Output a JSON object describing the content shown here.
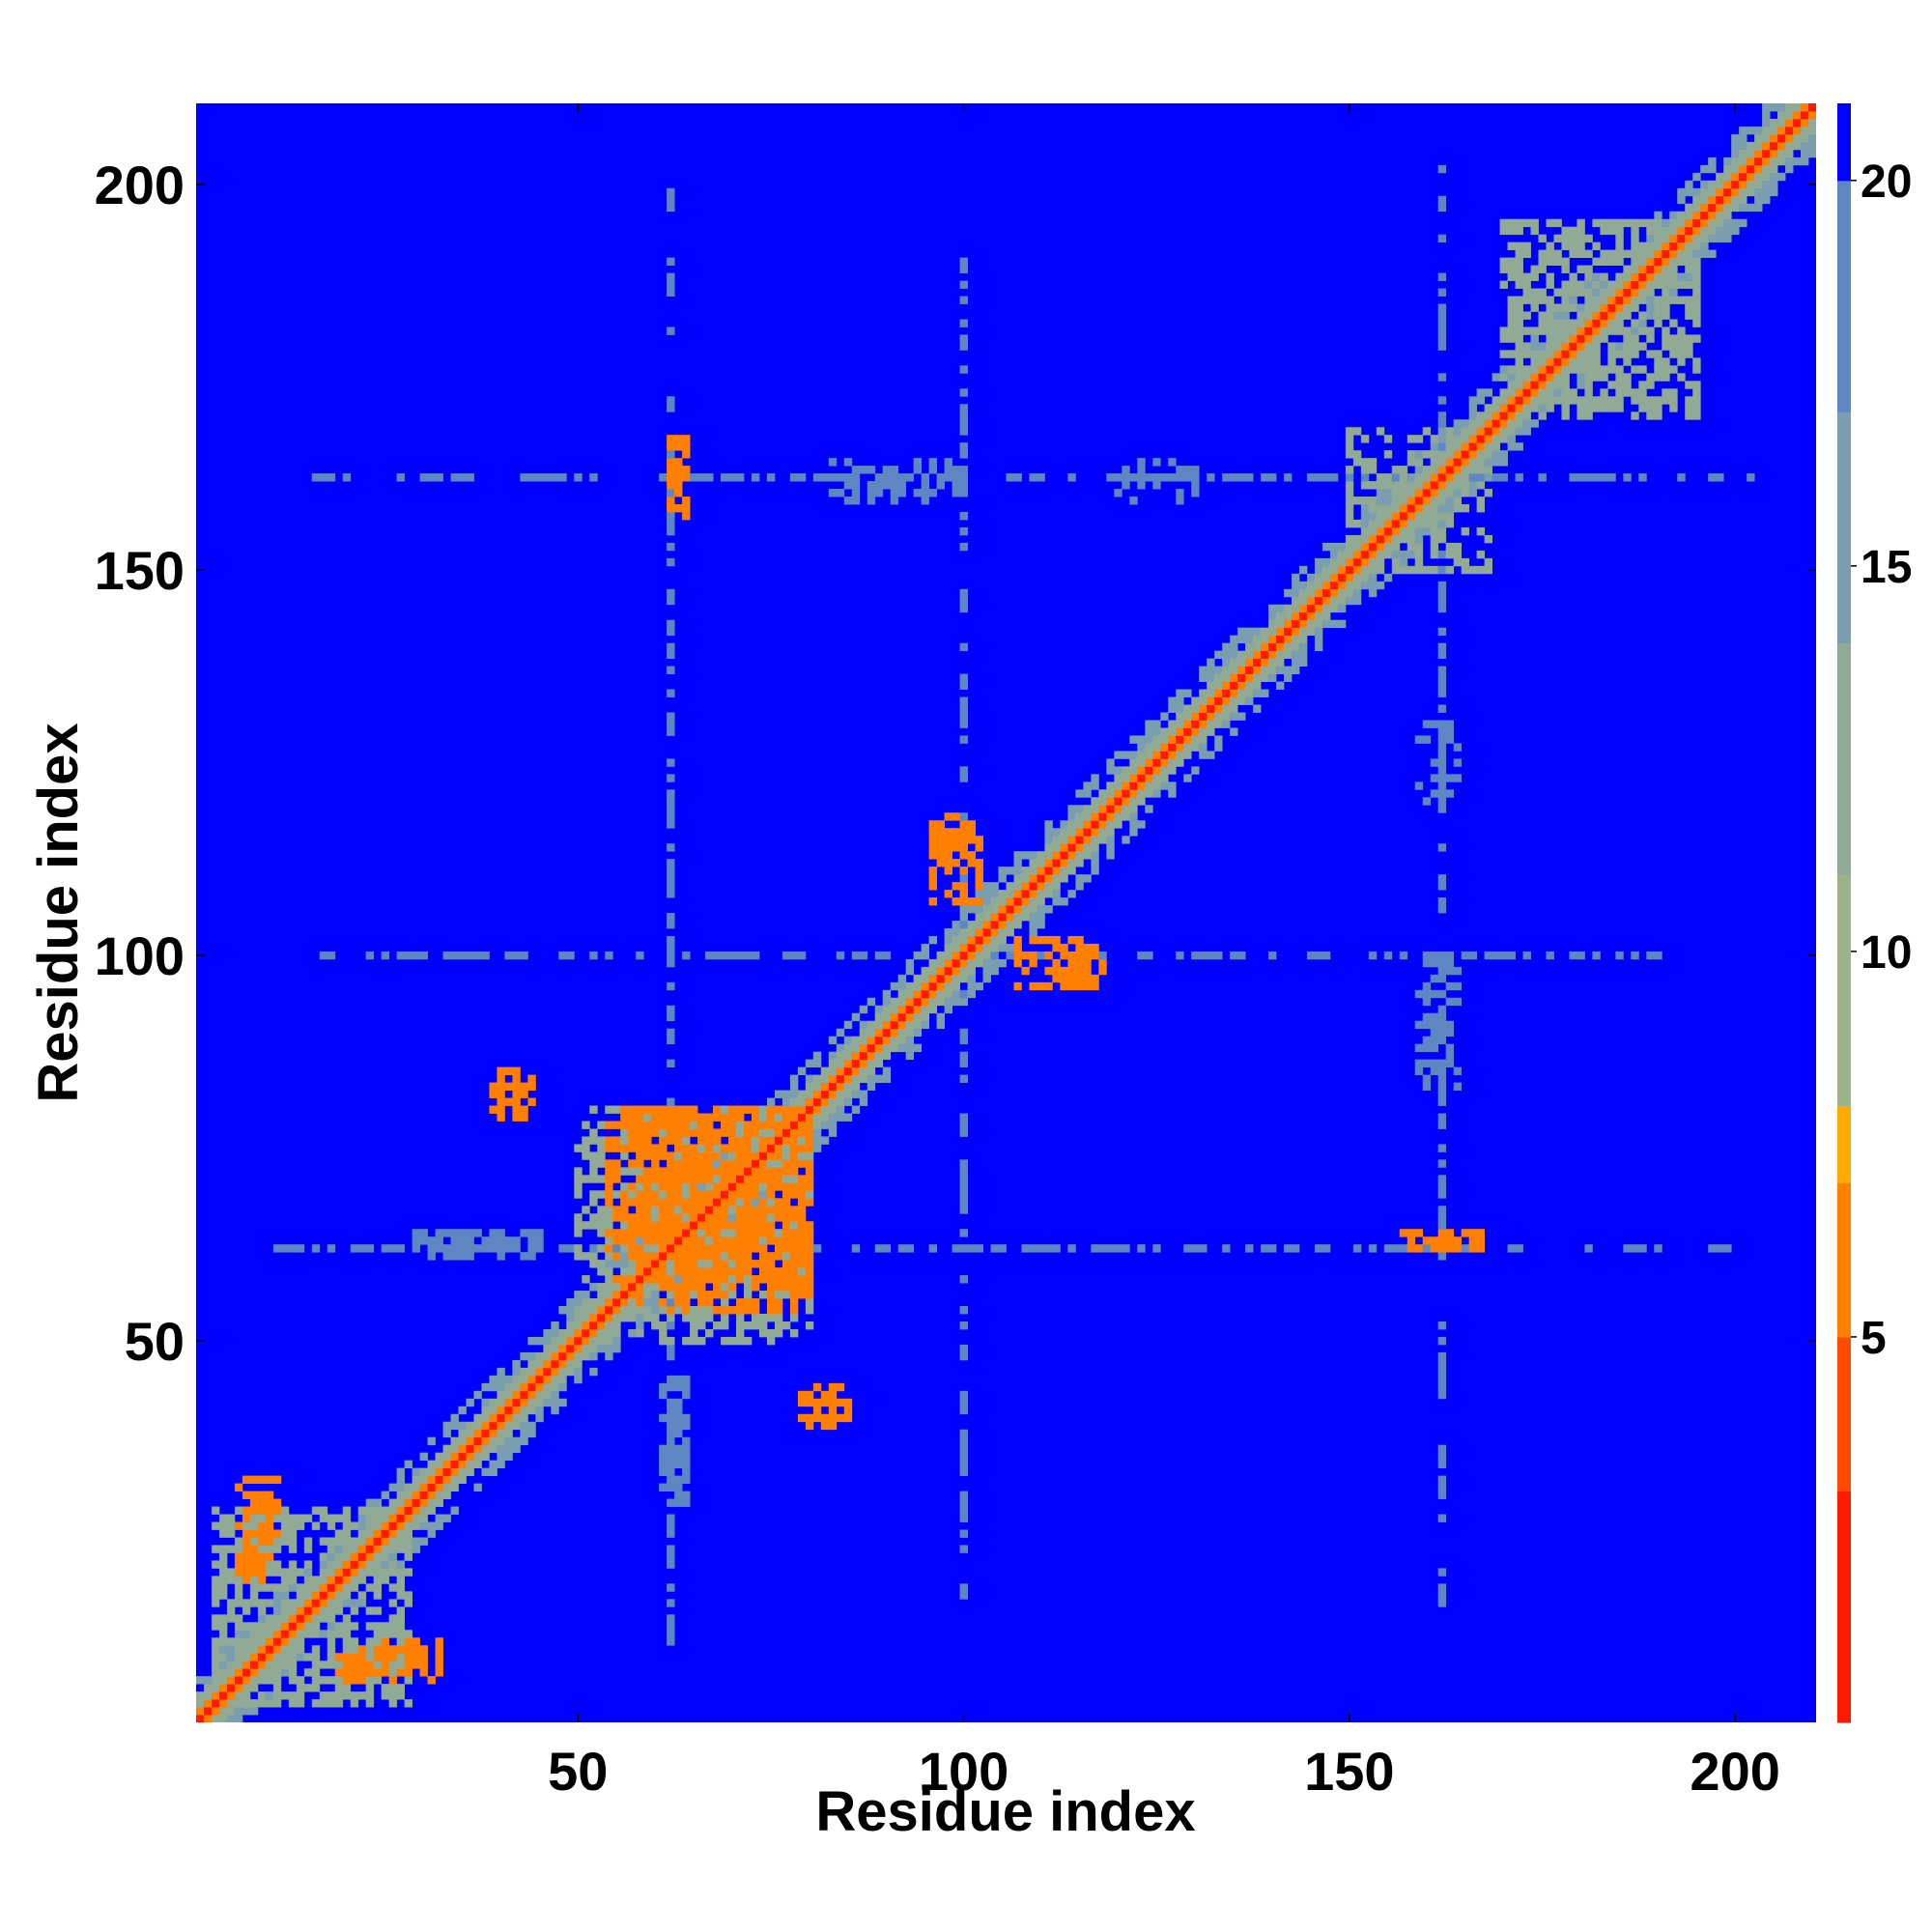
{
  "chart_data": {
    "type": "heatmap",
    "title": "",
    "xlabel": "Residue index",
    "ylabel": "Residue index",
    "xlim": [
      1,
      210
    ],
    "ylim": [
      1,
      210
    ],
    "x_ticks": [
      50,
      100,
      150,
      200
    ],
    "y_ticks": [
      50,
      100,
      150,
      200
    ],
    "x_tick_labels": [
      "50",
      "100",
      "150",
      "200"
    ],
    "y_tick_labels": [
      "50",
      "100",
      "150",
      "200"
    ],
    "grid": false,
    "symmetric": true,
    "value_range": [
      0,
      21
    ],
    "colorbar": {
      "ticks": [
        5,
        10,
        15,
        20
      ],
      "tick_labels": [
        "5",
        "10",
        "15",
        "20"
      ],
      "placement": "right",
      "bands": [
        {
          "from": 0,
          "to": 3,
          "color": "#ff1a00"
        },
        {
          "from": 3,
          "to": 5,
          "color": "#ff4a00"
        },
        {
          "from": 5,
          "to": 7,
          "color": "#ff8000"
        },
        {
          "from": 7,
          "to": 8,
          "color": "#ffaa00"
        },
        {
          "from": 8,
          "to": 11,
          "color": "#9cb38a"
        },
        {
          "from": 11,
          "to": 14,
          "color": "#90aa96"
        },
        {
          "from": 14,
          "to": 17,
          "color": "#7a9db0"
        },
        {
          "from": 17,
          "to": 20,
          "color": "#5e86c2"
        },
        {
          "from": 20,
          "to": 21,
          "color": "#0000ff"
        }
      ]
    },
    "background_value": 21,
    "diagonal": {
      "core_value": 2,
      "next_value": 6,
      "band_value": 11
    },
    "contact_blocks": [
      {
        "x": [
          6,
          11
        ],
        "y": [
          25,
          32
        ],
        "value": 6
      },
      {
        "x": [
          19,
          30
        ],
        "y": [
          6,
          10
        ],
        "value": 6
      },
      {
        "x": [
          3,
          28
        ],
        "y": [
          3,
          28
        ],
        "value": 13
      },
      {
        "x": [
          50,
          80
        ],
        "y": [
          52,
          80
        ],
        "value": 13
      },
      {
        "x": [
          54,
          80
        ],
        "y": [
          58,
          80
        ],
        "value": 6
      },
      {
        "x": [
          96,
          101
        ],
        "y": [
          112,
          118
        ],
        "value": 6
      },
      {
        "x": [
          107,
          116
        ],
        "y": [
          96,
          102
        ],
        "value": 6
      },
      {
        "x": [
          39,
          43
        ],
        "y": [
          80,
          85
        ],
        "value": 6
      },
      {
        "x": [
          79,
          84
        ],
        "y": [
          39,
          44
        ],
        "value": 6
      },
      {
        "x": [
          150,
          165
        ],
        "y": [
          150,
          168
        ],
        "value": 13
      },
      {
        "x": [
          170,
          195
        ],
        "y": [
          170,
          195
        ],
        "value": 13
      },
      {
        "x": [
          83,
          100
        ],
        "y": [
          160,
          164
        ],
        "value": 18
      },
      {
        "x": [
          159,
          163
        ],
        "y": [
          82,
          100
        ],
        "value": 18
      },
      {
        "x": [
          29,
          45
        ],
        "y": [
          61,
          64
        ],
        "value": 18
      },
      {
        "x": [
          61,
          64
        ],
        "y": [
          29,
          45
        ],
        "value": 18
      },
      {
        "x": [
          159,
          164
        ],
        "y": [
          120,
          130
        ],
        "value": 18
      },
      {
        "x": [
          61,
          64
        ],
        "y": [
          31,
          42
        ],
        "value": 18
      },
      {
        "x": [
          157,
          167
        ],
        "y": [
          62,
          64
        ],
        "value": 6
      },
      {
        "x": [
          62,
          64
        ],
        "y": [
          157,
          166
        ],
        "value": 6
      }
    ],
    "sparse_lines": [
      {
        "axis": "row",
        "at": 162,
        "from": 15,
        "to": 205,
        "value": 18
      },
      {
        "axis": "col",
        "at": 162,
        "from": 15,
        "to": 205,
        "value": 18
      },
      {
        "axis": "row",
        "at": 62,
        "from": 10,
        "to": 200,
        "value": 18
      },
      {
        "axis": "col",
        "at": 62,
        "from": 10,
        "to": 200,
        "value": 18
      },
      {
        "axis": "row",
        "at": 100,
        "from": 15,
        "to": 190,
        "value": 18
      },
      {
        "axis": "col",
        "at": 100,
        "from": 15,
        "to": 190,
        "value": 18
      }
    ]
  }
}
